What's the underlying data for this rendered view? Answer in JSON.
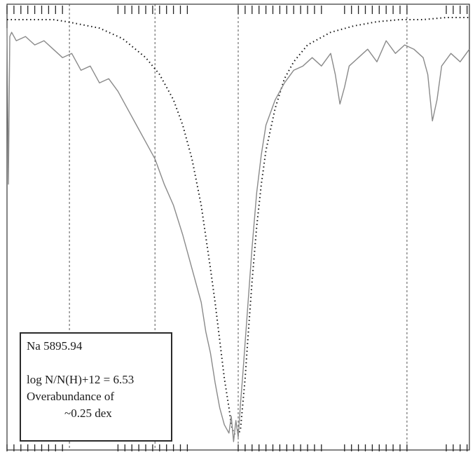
{
  "chart_data": {
    "type": "line",
    "title": "",
    "xlabel": "",
    "ylabel": "",
    "grid": "dashed vertical lines",
    "annotations": {
      "line_id": "Na 5895.94",
      "abundance": "log N/N(H)+12 = 6.53",
      "over_line1": "Overabundance  of",
      "over_line2": "~0.25 dex"
    },
    "series": [
      {
        "style": "dotted black",
        "x": [
          0,
          0.05,
          0.1,
          0.13,
          0.2,
          0.25,
          0.3,
          0.33,
          0.36,
          0.38,
          0.4,
          0.42,
          0.44,
          0.45,
          0.46,
          0.47,
          0.48,
          0.485,
          0.49,
          0.495,
          0.5,
          0.505,
          0.51,
          0.515,
          0.52,
          0.53,
          0.54,
          0.55,
          0.56,
          0.58,
          0.6,
          0.62,
          0.65,
          0.7,
          0.75,
          0.8,
          0.85,
          0.9,
          0.95,
          1.0
        ],
        "values": [
          0.99,
          0.99,
          0.99,
          0.985,
          0.97,
          0.945,
          0.9,
          0.86,
          0.8,
          0.74,
          0.66,
          0.55,
          0.4,
          0.32,
          0.23,
          0.14,
          0.07,
          0.03,
          0.01,
          0.005,
          0.005,
          0.02,
          0.08,
          0.14,
          0.22,
          0.37,
          0.5,
          0.6,
          0.68,
          0.78,
          0.85,
          0.89,
          0.93,
          0.96,
          0.975,
          0.985,
          0.99,
          0.99,
          0.995,
          0.995
        ]
      },
      {
        "style": "solid gray",
        "x": [
          0,
          0.003,
          0.006,
          0.01,
          0.02,
          0.04,
          0.06,
          0.08,
          0.1,
          0.12,
          0.14,
          0.16,
          0.18,
          0.2,
          0.22,
          0.24,
          0.26,
          0.28,
          0.3,
          0.32,
          0.34,
          0.36,
          0.38,
          0.4,
          0.42,
          0.43,
          0.44,
          0.45,
          0.46,
          0.47,
          0.48,
          0.485,
          0.49,
          0.495,
          0.5,
          0.505,
          0.51,
          0.52,
          0.53,
          0.54,
          0.55,
          0.56,
          0.58,
          0.6,
          0.62,
          0.64,
          0.66,
          0.68,
          0.7,
          0.71,
          0.72,
          0.73,
          0.74,
          0.76,
          0.78,
          0.8,
          0.82,
          0.84,
          0.86,
          0.88,
          0.9,
          0.91,
          0.92,
          0.93,
          0.94,
          0.96,
          0.98,
          1.0
        ],
        "values": [
          0.97,
          0.6,
          0.95,
          0.96,
          0.94,
          0.95,
          0.93,
          0.94,
          0.92,
          0.9,
          0.91,
          0.87,
          0.88,
          0.84,
          0.85,
          0.82,
          0.78,
          0.74,
          0.7,
          0.66,
          0.6,
          0.55,
          0.48,
          0.4,
          0.32,
          0.25,
          0.2,
          0.13,
          0.07,
          0.03,
          0.01,
          0.05,
          -0.01,
          0.04,
          0.0,
          0.08,
          0.15,
          0.3,
          0.45,
          0.58,
          0.67,
          0.74,
          0.8,
          0.84,
          0.87,
          0.88,
          0.9,
          0.88,
          0.91,
          0.86,
          0.79,
          0.83,
          0.88,
          0.9,
          0.92,
          0.89,
          0.94,
          0.91,
          0.93,
          0.92,
          0.9,
          0.86,
          0.75,
          0.8,
          0.88,
          0.91,
          0.89,
          0.92
        ]
      }
    ],
    "xlim": [
      0,
      1
    ],
    "ylim": [
      -0.03,
      1.0
    ],
    "gridlines_x": [
      0.135,
      0.32,
      0.5,
      0.865
    ]
  }
}
